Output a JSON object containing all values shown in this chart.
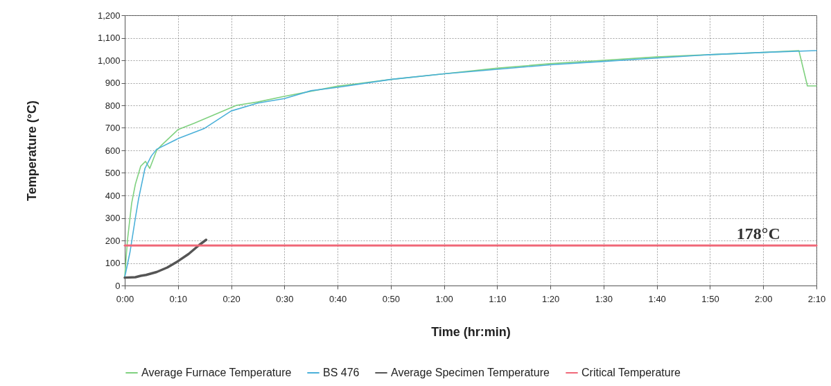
{
  "chart_data": {
    "type": "line",
    "xlabel": "Time (hr:min)",
    "ylabel": "Temperature (°C)",
    "xlim": [
      0,
      130
    ],
    "ylim": [
      0,
      1200
    ],
    "xticks": [
      {
        "value": 0,
        "label": "0:00"
      },
      {
        "value": 10,
        "label": "0:10"
      },
      {
        "value": 20,
        "label": "0:20"
      },
      {
        "value": 30,
        "label": "0:30"
      },
      {
        "value": 40,
        "label": "0:40"
      },
      {
        "value": 50,
        "label": "0:50"
      },
      {
        "value": 60,
        "label": "1:00"
      },
      {
        "value": 70,
        "label": "1:10"
      },
      {
        "value": 80,
        "label": "1:20"
      },
      {
        "value": 90,
        "label": "1:30"
      },
      {
        "value": 100,
        "label": "1:40"
      },
      {
        "value": 110,
        "label": "1:50"
      },
      {
        "value": 120,
        "label": "2:00"
      },
      {
        "value": 130,
        "label": "2:10"
      }
    ],
    "yticks": [
      0,
      100,
      200,
      300,
      400,
      500,
      600,
      700,
      800,
      900,
      {
        "value": 1000,
        "label": "1,000"
      },
      {
        "value": 1100,
        "label": "1,100"
      },
      {
        "value": 1200,
        "label": "1,200"
      }
    ],
    "grid": true,
    "legend": "bottom",
    "marker": "none",
    "line_style": "solid",
    "annotations": [
      {
        "text": "178°C",
        "x": 115,
        "y": 178
      }
    ],
    "series": [
      {
        "name": "Average Furnace Temperature",
        "color": "#7fd17f",
        "x": [
          0,
          0.5,
          1.3,
          2,
          3,
          3.9,
          4.7,
          6,
          7,
          10,
          13,
          17,
          21,
          25,
          30,
          40,
          50,
          60,
          70,
          80,
          90,
          100,
          110,
          120,
          126.7,
          128.3,
          130
        ],
        "values": [
          40,
          200,
          366,
          450,
          530,
          551,
          520,
          600,
          625,
          692,
          720,
          760,
          800,
          815,
          840,
          885,
          915,
          940,
          965,
          985,
          1000,
          1015,
          1025,
          1035,
          1043,
          886,
          886
        ]
      },
      {
        "name": "BS 476",
        "color": "#4ab0d9",
        "x": [
          0,
          1,
          2,
          2.6,
          3.8,
          5,
          6,
          10,
          15,
          20,
          25,
          30,
          35,
          40,
          50,
          60,
          70,
          80,
          90,
          100,
          110,
          120,
          130
        ],
        "values": [
          37,
          150,
          300,
          385,
          520,
          575,
          605,
          652,
          698,
          775,
          810,
          830,
          865,
          880,
          915,
          940,
          960,
          980,
          995,
          1010,
          1025,
          1035,
          1043
        ]
      },
      {
        "name": "Average Specimen Temperature",
        "color": "#555555",
        "x": [
          0,
          2,
          3,
          4,
          6,
          8,
          10,
          12,
          14,
          15.3
        ],
        "values": [
          35,
          37,
          43,
          47,
          60,
          80,
          108,
          140,
          180,
          203
        ]
      },
      {
        "name": "Critical Temperature",
        "color": "#f06878",
        "x": [
          0,
          130
        ],
        "values": [
          178,
          178
        ]
      }
    ]
  }
}
